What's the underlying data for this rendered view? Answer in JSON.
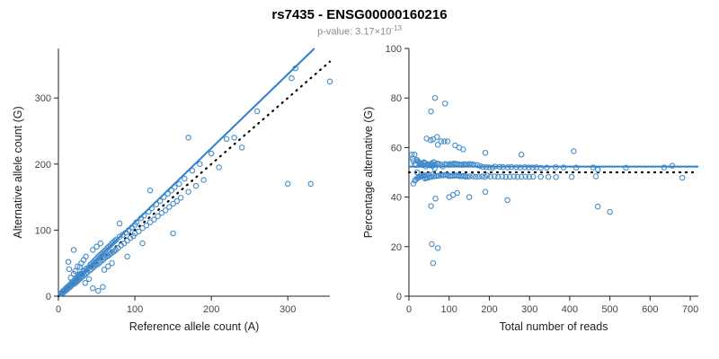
{
  "header": {
    "title": "rs7435 - ENSG00000160216",
    "pvalue_prefix": "p-value: 3.17×10",
    "pvalue_exponent": "-13"
  },
  "colors": {
    "point": "#3d87c8",
    "fit_line": "#2d7fd3",
    "reference_line": "#000000",
    "axis": "#222222",
    "tick_text": "#444444"
  },
  "chart_data": [
    {
      "type": "scatter",
      "xlabel": "Reference allele count (A)",
      "ylabel": "Alternative allele count (G)",
      "xlim": [
        0,
        355
      ],
      "ylim": [
        0,
        375
      ],
      "xticks": [
        0,
        100,
        200,
        300
      ],
      "yticks": [
        0,
        100,
        200,
        300
      ],
      "lines": [
        {
          "name": "fit",
          "slope": 1.12,
          "intercept": 0,
          "style": "solid"
        },
        {
          "name": "identity",
          "slope": 1,
          "intercept": 0,
          "style": "dotted"
        }
      ],
      "points": [
        [
          3,
          4
        ],
        [
          5,
          6
        ],
        [
          6,
          5
        ],
        [
          8,
          9
        ],
        [
          9,
          11
        ],
        [
          10,
          10
        ],
        [
          11,
          13
        ],
        [
          12,
          11
        ],
        [
          13,
          15
        ],
        [
          14,
          13
        ],
        [
          15,
          17
        ],
        [
          15,
          14
        ],
        [
          16,
          18
        ],
        [
          17,
          16
        ],
        [
          18,
          21
        ],
        [
          19,
          18
        ],
        [
          20,
          22
        ],
        [
          20,
          19
        ],
        [
          21,
          24
        ],
        [
          22,
          21
        ],
        [
          23,
          26
        ],
        [
          24,
          22
        ],
        [
          25,
          28
        ],
        [
          25,
          24
        ],
        [
          26,
          30
        ],
        [
          27,
          25
        ],
        [
          28,
          31
        ],
        [
          29,
          27
        ],
        [
          30,
          34
        ],
        [
          30,
          29
        ],
        [
          8,
          7
        ],
        [
          12,
          14
        ],
        [
          14,
          16
        ],
        [
          16,
          15
        ],
        [
          18,
          17
        ],
        [
          22,
          25
        ],
        [
          24,
          27
        ],
        [
          26,
          24
        ],
        [
          28,
          33
        ],
        [
          10,
          12
        ],
        [
          6,
          8
        ],
        [
          4,
          5
        ],
        [
          7,
          8
        ],
        [
          9,
          8
        ],
        [
          11,
          10
        ],
        [
          13,
          12
        ],
        [
          17,
          20
        ],
        [
          19,
          22
        ],
        [
          21,
          19
        ],
        [
          23,
          21
        ],
        [
          27,
          31
        ],
        [
          29,
          34
        ],
        [
          31,
          33
        ],
        [
          32,
          30
        ],
        [
          33,
          38
        ],
        [
          34,
          32
        ],
        [
          35,
          40
        ],
        [
          36,
          34
        ],
        [
          37,
          42
        ],
        [
          38,
          36
        ],
        [
          40,
          44
        ],
        [
          41,
          39
        ],
        [
          42,
          48
        ],
        [
          43,
          41
        ],
        [
          44,
          50
        ],
        [
          45,
          43
        ],
        [
          46,
          52
        ],
        [
          47,
          45
        ],
        [
          48,
          55
        ],
        [
          49,
          47
        ],
        [
          50,
          57
        ],
        [
          51,
          48
        ],
        [
          52,
          60
        ],
        [
          53,
          50
        ],
        [
          54,
          62
        ],
        [
          55,
          52
        ],
        [
          56,
          64
        ],
        [
          57,
          54
        ],
        [
          58,
          66
        ],
        [
          59,
          56
        ],
        [
          60,
          68
        ],
        [
          61,
          58
        ],
        [
          62,
          70
        ],
        [
          63,
          60
        ],
        [
          64,
          73
        ],
        [
          65,
          61
        ],
        [
          66,
          75
        ],
        [
          67,
          63
        ],
        [
          68,
          77
        ],
        [
          69,
          65
        ],
        [
          70,
          80
        ],
        [
          71,
          67
        ],
        [
          72,
          82
        ],
        [
          73,
          68
        ],
        [
          74,
          84
        ],
        [
          75,
          70
        ],
        [
          76,
          86
        ],
        [
          78,
          73
        ],
        [
          80,
          90
        ],
        [
          82,
          77
        ],
        [
          84,
          93
        ],
        [
          86,
          80
        ],
        [
          88,
          96
        ],
        [
          90,
          84
        ],
        [
          92,
          100
        ],
        [
          94,
          88
        ],
        [
          96,
          104
        ],
        [
          98,
          91
        ],
        [
          100,
          108
        ],
        [
          100,
          95
        ],
        [
          102,
          112
        ],
        [
          105,
          98
        ],
        [
          108,
          118
        ],
        [
          110,
          103
        ],
        [
          112,
          122
        ],
        [
          115,
          107
        ],
        [
          118,
          128
        ],
        [
          120,
          112
        ],
        [
          122,
          133
        ],
        [
          125,
          116
        ],
        [
          128,
          139
        ],
        [
          130,
          121
        ],
        [
          133,
          144
        ],
        [
          135,
          126
        ],
        [
          138,
          150
        ],
        [
          140,
          130
        ],
        [
          143,
          155
        ],
        [
          145,
          135
        ],
        [
          148,
          160
        ],
        [
          150,
          140
        ],
        [
          152,
          165
        ],
        [
          155,
          144
        ],
        [
          158,
          170
        ],
        [
          160,
          149
        ],
        [
          150,
          95
        ],
        [
          165,
          178
        ],
        [
          170,
          158
        ],
        [
          175,
          190
        ],
        [
          180,
          167
        ],
        [
          185,
          200
        ],
        [
          190,
          176
        ],
        [
          200,
          216
        ],
        [
          210,
          195
        ],
        [
          220,
          238
        ],
        [
          230,
          240
        ],
        [
          240,
          225
        ],
        [
          260,
          280
        ],
        [
          300,
          170
        ],
        [
          305,
          330
        ],
        [
          170,
          240
        ],
        [
          355,
          325
        ],
        [
          310,
          345
        ],
        [
          30,
          50
        ],
        [
          25,
          45
        ],
        [
          35,
          20
        ],
        [
          40,
          26
        ],
        [
          28,
          44
        ],
        [
          22,
          38
        ],
        [
          60,
          40
        ],
        [
          55,
          80
        ],
        [
          70,
          50
        ],
        [
          45,
          70
        ],
        [
          33,
          55
        ],
        [
          90,
          60
        ],
        [
          80,
          110
        ],
        [
          65,
          45
        ],
        [
          36,
          60
        ],
        [
          20,
          34
        ],
        [
          16,
          28
        ],
        [
          50,
          75
        ],
        [
          110,
          80
        ],
        [
          120,
          160
        ],
        [
          52,
          8
        ],
        [
          45,
          12
        ],
        [
          58,
          14
        ],
        [
          13,
          52
        ],
        [
          20,
          70
        ],
        [
          14,
          41
        ],
        [
          330,
          170
        ]
      ]
    },
    {
      "type": "scatter",
      "xlabel": "Total number of reads",
      "ylabel": "Percentage alternative (G)",
      "xlim": [
        0,
        720
      ],
      "ylim": [
        0,
        100
      ],
      "xticks": [
        0,
        100,
        200,
        300,
        400,
        500,
        600,
        700
      ],
      "yticks": [
        0,
        20,
        40,
        60,
        80,
        100
      ],
      "derive": "total_percent",
      "derive_note": "x = ref+alt reads, y = alt/(ref+alt)*100 from chart 0 points",
      "lines": [
        {
          "name": "mean",
          "slope": 0,
          "intercept": 52.3,
          "style": "solid"
        },
        {
          "name": "fifty-percent",
          "slope": 0,
          "intercept": 50,
          "style": "dotted"
        }
      ]
    }
  ]
}
